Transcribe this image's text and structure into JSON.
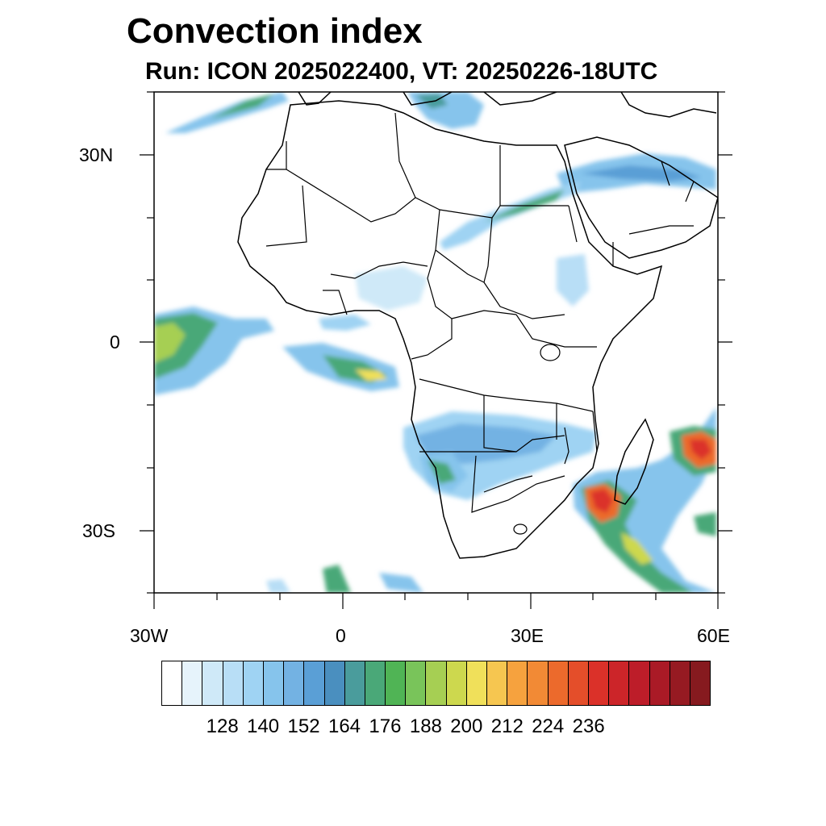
{
  "title": "Convection index",
  "subtitle": "Run: ICON 2025022400,  VT: 20250226-18UTC",
  "map": {
    "lat_labels": [
      "30N",
      "0",
      "30S"
    ],
    "lon_labels": [
      "30W",
      "0",
      "30E",
      "60E"
    ],
    "extent": {
      "lon_min": -30,
      "lon_max": 60,
      "lat_min": -40,
      "lat_max": 40
    },
    "variable": "Convection index"
  },
  "colorbar": {
    "colors": [
      "#ffffff",
      "#e6f3fb",
      "#cfe9f8",
      "#b8def6",
      "#9fd3f3",
      "#86c4ec",
      "#73b2e3",
      "#5a9fd6",
      "#4a8fbf",
      "#4a9c9c",
      "#4aa878",
      "#50b455",
      "#79c45a",
      "#a6cf53",
      "#cdd84e",
      "#f0e05a",
      "#f6c650",
      "#f6a23e",
      "#f28a35",
      "#ec6a2c",
      "#e44e2a",
      "#db3129",
      "#cc2529",
      "#bd1d29",
      "#aa1a26",
      "#961a22",
      "#861a1f"
    ],
    "labels": [
      "128",
      "140",
      "152",
      "164",
      "176",
      "188",
      "200",
      "212",
      "224",
      "236"
    ]
  }
}
